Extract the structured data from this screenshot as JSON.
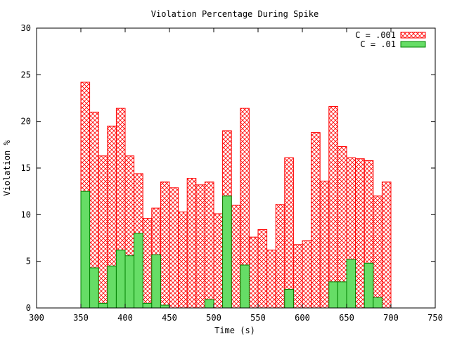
{
  "chart_data": {
    "type": "bar",
    "title": "Violation Percentage During Spike",
    "xlabel": "Time (s)",
    "ylabel": "Violation %",
    "xlim": [
      300,
      750
    ],
    "ylim": [
      0,
      30
    ],
    "x_ticks": [
      300,
      350,
      400,
      450,
      500,
      550,
      600,
      650,
      700,
      750
    ],
    "y_ticks": [
      0,
      5,
      10,
      15,
      20,
      25,
      30
    ],
    "grid": false,
    "legend_position": "top-right",
    "bin_width": 10,
    "x": [
      355,
      365,
      375,
      385,
      395,
      405,
      415,
      425,
      435,
      445,
      455,
      465,
      475,
      485,
      495,
      505,
      515,
      525,
      535,
      545,
      555,
      565,
      575,
      585,
      595,
      605,
      615,
      625,
      635,
      645,
      655,
      665,
      675,
      685,
      695
    ],
    "series": [
      {
        "name": "C = .001",
        "color": "#ff0000",
        "fill": "crosshatch",
        "values": [
          24.2,
          21.0,
          16.3,
          19.5,
          21.4,
          16.3,
          14.4,
          9.6,
          10.7,
          13.5,
          12.9,
          10.3,
          13.9,
          13.2,
          13.5,
          10.1,
          19.0,
          11.0,
          21.4,
          7.6,
          8.4,
          6.2,
          11.1,
          16.1,
          6.8,
          7.2,
          18.8,
          13.6,
          21.6,
          17.3,
          16.1,
          16.0,
          15.8,
          12.0,
          13.5
        ]
      },
      {
        "name": "C = .01",
        "color": "#00c000",
        "fill": "solid",
        "values": [
          12.5,
          4.3,
          0.5,
          4.5,
          6.2,
          5.6,
          8.0,
          0.5,
          5.7,
          0.3,
          0,
          0,
          0,
          0,
          0.9,
          0,
          12.0,
          0,
          4.6,
          0,
          0,
          0,
          0,
          2.0,
          0,
          0,
          0,
          0,
          2.8,
          2.8,
          5.2,
          0,
          4.8,
          1.1,
          0
        ]
      }
    ]
  }
}
